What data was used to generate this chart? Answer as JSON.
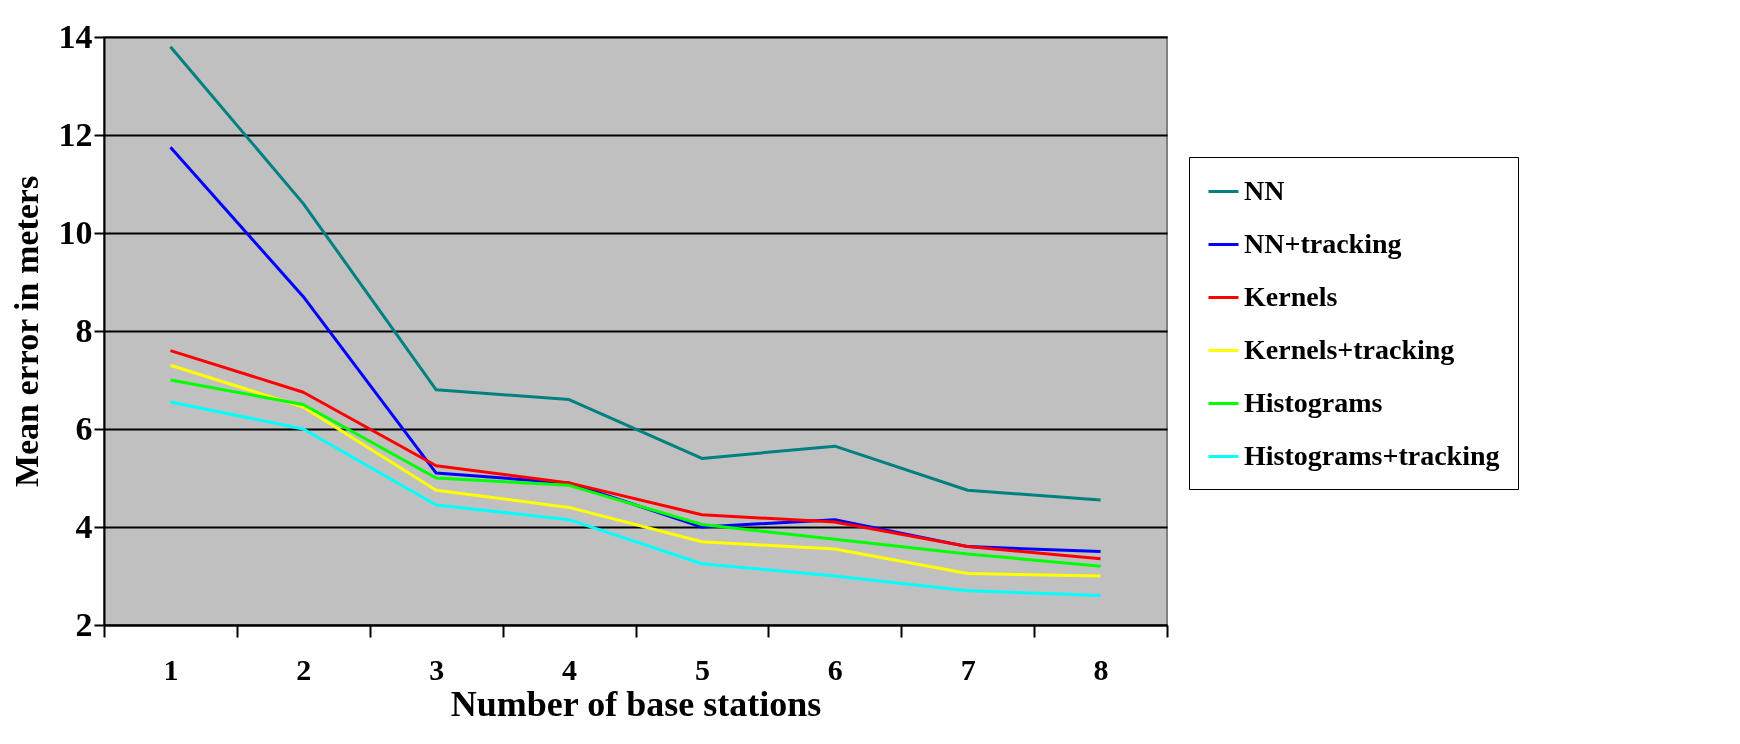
{
  "chart_data": {
    "type": "line",
    "xlabel": "Number of base stations",
    "ylabel": "Mean error in meters",
    "categories": [
      "1",
      "2",
      "3",
      "4",
      "5",
      "6",
      "7",
      "8"
    ],
    "ylim": [
      2,
      14
    ],
    "yticks": [
      2,
      4,
      6,
      8,
      10,
      12,
      14
    ],
    "grid": "y",
    "legend": "right",
    "marker": "none",
    "line_style": "solid",
    "series": [
      {
        "name": "NN",
        "color": "#008080",
        "values": [
          13.8,
          10.6,
          6.8,
          6.6,
          5.4,
          5.65,
          4.75,
          4.55
        ]
      },
      {
        "name": "NN+tracking",
        "color": "#0000ff",
        "values": [
          11.75,
          8.7,
          5.1,
          4.9,
          4.0,
          4.15,
          3.6,
          3.5
        ]
      },
      {
        "name": "Kernels",
        "color": "#ff0000",
        "values": [
          7.6,
          6.75,
          5.25,
          4.9,
          4.25,
          4.1,
          3.6,
          3.35
        ]
      },
      {
        "name": "Kernels+tracking",
        "color": "#ffff00",
        "values": [
          7.3,
          6.45,
          4.75,
          4.4,
          3.7,
          3.55,
          3.05,
          3.0
        ]
      },
      {
        "name": "Histograms",
        "color": "#00ff00",
        "values": [
          7.0,
          6.5,
          5.0,
          4.85,
          4.05,
          3.75,
          3.45,
          3.2
        ]
      },
      {
        "name": "Histograms+tracking",
        "color": "#00ffff",
        "values": [
          6.55,
          6.0,
          4.45,
          4.15,
          3.25,
          3.0,
          2.7,
          2.6
        ]
      }
    ]
  }
}
